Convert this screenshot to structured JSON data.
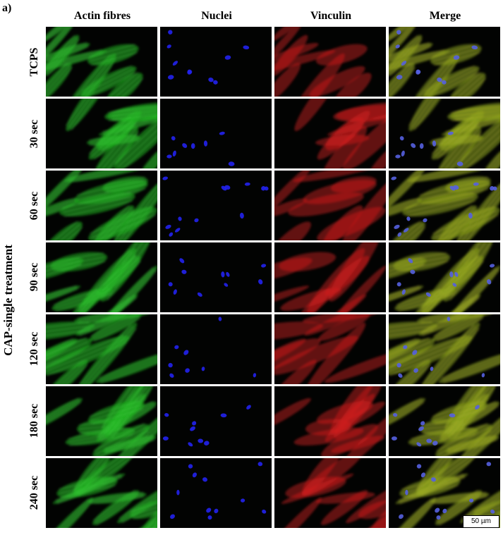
{
  "panel_label": "a)",
  "columns": [
    {
      "label": "Actin fibres",
      "stain": "actin",
      "color": "#1fb51f"
    },
    {
      "label": "Nuclei",
      "stain": "nuclei",
      "color": "#1a1aff"
    },
    {
      "label": "Vinculin",
      "stain": "vinculin",
      "color": "#d61e1e"
    },
    {
      "label": "Merge",
      "stain": "merge",
      "color": "#9a8a1e"
    }
  ],
  "group_label": "CAP-single treatment",
  "rows": [
    {
      "label": "TCPS"
    },
    {
      "label": "30 sec"
    },
    {
      "label": "60 sec"
    },
    {
      "label": "90 sec"
    },
    {
      "label": "120 sec"
    },
    {
      "label": "180 sec"
    },
    {
      "label": "240 sec"
    }
  ],
  "scale_bar": "50 µm"
}
